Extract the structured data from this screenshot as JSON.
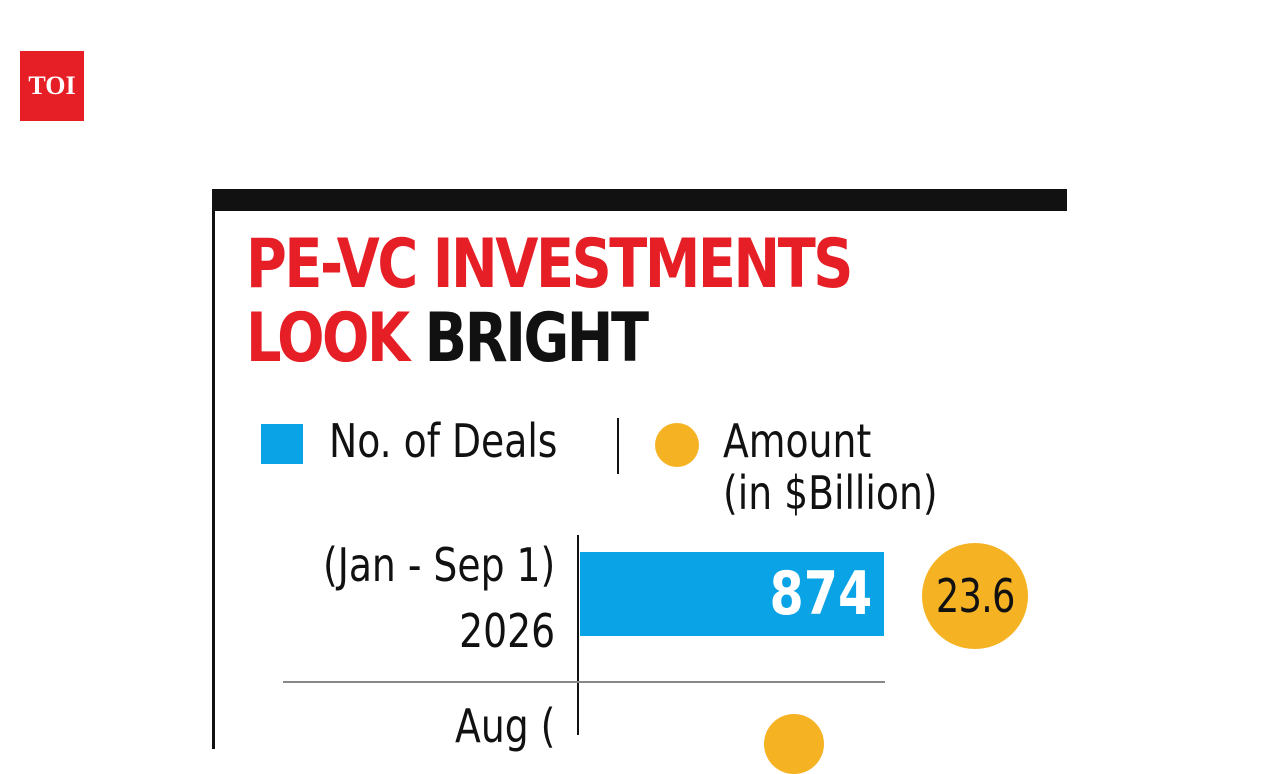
{
  "logo": {
    "text": "TOI",
    "color": "#e61e25"
  },
  "chart_data": {
    "type": "bar",
    "title": "PE-VC INVESTMENTS LOOK BRIGHT",
    "title_parts": {
      "line1": "PE-VC INVESTMENTS",
      "line2_red": "LOOK",
      "line2_black": "BRIGHT"
    },
    "legend": [
      {
        "name": "No. of Deals",
        "marker": "square",
        "color": "#0aa4e6"
      },
      {
        "name": "Amount",
        "name_line2": "(in $Billion)",
        "marker": "circle",
        "color": "#f5b324"
      }
    ],
    "categories": [
      {
        "line1": "(Jan - Sep 1)",
        "line2": "2026"
      },
      {
        "line1": "Aug (",
        "line2": ""
      }
    ],
    "series": [
      {
        "name": "No. of Deals",
        "values": [
          874,
          null
        ]
      },
      {
        "name": "Amount",
        "values": [
          23.6,
          null
        ]
      }
    ],
    "scale_max": 874,
    "colors": {
      "title_red": "#e61e25",
      "title_black": "#111111",
      "bar": "#0aa4e6",
      "amount": "#f5b324"
    }
  }
}
